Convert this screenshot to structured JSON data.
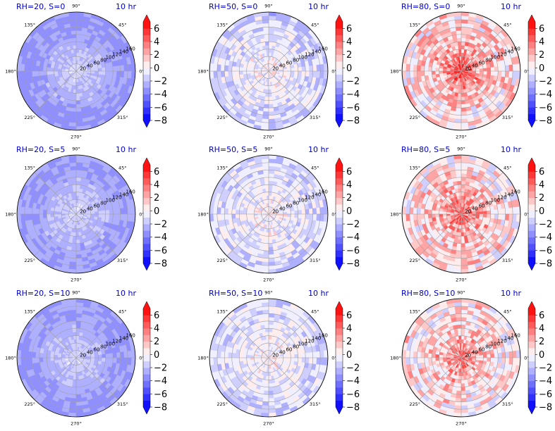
{
  "chart_data": [
    {
      "type": "heatmap",
      "projection": "polar",
      "title_left": "RH=20, S=0",
      "title_right": "10 hr",
      "pattern": "uniform-negative",
      "mean": -3.2,
      "spread": 1.4,
      "center_value": -1.2,
      "angle_ticks": [
        "90°",
        "45°",
        "0°",
        "315°",
        "270°",
        "225°",
        "180°",
        "135°"
      ],
      "radial_ticks": [
        "20",
        "40",
        "60",
        "80",
        "100",
        "120",
        "140",
        "160"
      ],
      "rlim": [
        0,
        160
      ],
      "colorbar": {
        "ticks": [
          "6",
          "4",
          "2",
          "0",
          "−2",
          "−4",
          "−6",
          "−8"
        ],
        "range": [
          -8,
          7
        ],
        "extend": "both",
        "cmap": "bwr"
      }
    },
    {
      "type": "heatmap",
      "projection": "polar",
      "title_left": "RH=50, S=0",
      "title_right": "10 hr",
      "pattern": "mixed-mild",
      "mean": -1.6,
      "spread": 1.5,
      "center_value": 0.2,
      "angle_ticks": [
        "90°",
        "45°",
        "0°",
        "315°",
        "270°",
        "225°",
        "180°",
        "135°"
      ],
      "radial_ticks": [
        "20",
        "40",
        "60",
        "80",
        "100",
        "120",
        "140",
        "160"
      ],
      "rlim": [
        0,
        160
      ],
      "colorbar": {
        "ticks": [
          "6",
          "4",
          "2",
          "0",
          "−2",
          "−4",
          "−6",
          "−8"
        ],
        "range": [
          -8,
          7
        ],
        "extend": "both",
        "cmap": "bwr"
      }
    },
    {
      "type": "heatmap",
      "projection": "polar",
      "title_left": "RH=80, S=0",
      "title_right": "10 hr",
      "pattern": "positive-center",
      "mean": 1.2,
      "spread": 2.5,
      "center_value": 5.5,
      "angle_ticks": [
        "90°",
        "45°",
        "0°",
        "315°",
        "270°",
        "225°",
        "180°",
        "135°"
      ],
      "radial_ticks": [
        "20",
        "40",
        "60",
        "80",
        "100",
        "120",
        "140",
        "160"
      ],
      "rlim": [
        0,
        160
      ],
      "colorbar": {
        "ticks": [
          "6",
          "4",
          "2",
          "0",
          "−2",
          "−4",
          "−6",
          "−8"
        ],
        "range": [
          -8,
          7
        ],
        "extend": "both",
        "cmap": "bwr"
      }
    },
    {
      "type": "heatmap",
      "projection": "polar",
      "title_left": "RH=20, S=5",
      "title_right": "10 hr",
      "pattern": "uniform-negative",
      "mean": -3.0,
      "spread": 1.4,
      "center_value": -1.2,
      "angle_ticks": [
        "90°",
        "45°",
        "0°",
        "315°",
        "270°",
        "225°",
        "180°",
        "135°"
      ],
      "radial_ticks": [
        "20",
        "40",
        "60",
        "80",
        "100",
        "120",
        "140",
        "160"
      ],
      "rlim": [
        0,
        160
      ],
      "colorbar": {
        "ticks": [
          "6",
          "4",
          "2",
          "0",
          "−2",
          "−4",
          "−6",
          "−8"
        ],
        "range": [
          -8,
          7
        ],
        "extend": "both",
        "cmap": "bwr"
      }
    },
    {
      "type": "heatmap",
      "projection": "polar",
      "title_left": "RH=50, S=5",
      "title_right": "10 hr",
      "pattern": "mixed-mild",
      "mean": -1.4,
      "spread": 1.5,
      "center_value": 0.2,
      "angle_ticks": [
        "90°",
        "45°",
        "0°",
        "315°",
        "270°",
        "225°",
        "180°",
        "135°"
      ],
      "radial_ticks": [
        "20",
        "40",
        "60",
        "80",
        "100",
        "120",
        "140",
        "160"
      ],
      "rlim": [
        0,
        160
      ],
      "colorbar": {
        "ticks": [
          "6",
          "4",
          "2",
          "0",
          "−2",
          "−4",
          "−6",
          "−8"
        ],
        "range": [
          -8,
          7
        ],
        "extend": "both",
        "cmap": "bwr"
      }
    },
    {
      "type": "heatmap",
      "projection": "polar",
      "title_left": "RH=80, S=5",
      "title_right": "10 hr",
      "pattern": "positive-center",
      "mean": 1.3,
      "spread": 2.5,
      "center_value": 4.5,
      "angle_ticks": [
        "90°",
        "45°",
        "0°",
        "315°",
        "270°",
        "225°",
        "180°",
        "135°"
      ],
      "radial_ticks": [
        "20",
        "40",
        "60",
        "80",
        "100",
        "120",
        "140",
        "160"
      ],
      "rlim": [
        0,
        160
      ],
      "colorbar": {
        "ticks": [
          "6",
          "4",
          "2",
          "0",
          "−2",
          "−4",
          "−6",
          "−8"
        ],
        "range": [
          -8,
          7
        ],
        "extend": "both",
        "cmap": "bwr"
      }
    },
    {
      "type": "heatmap",
      "projection": "polar",
      "title_left": "RH=20, S=10",
      "title_right": "10 hr",
      "pattern": "uniform-negative",
      "mean": -3.1,
      "spread": 1.4,
      "center_value": -1.2,
      "angle_ticks": [
        "90°",
        "45°",
        "0°",
        "315°",
        "270°",
        "225°",
        "180°",
        "135°"
      ],
      "radial_ticks": [
        "20",
        "40",
        "60",
        "80",
        "100",
        "120",
        "140",
        "160"
      ],
      "rlim": [
        0,
        160
      ],
      "colorbar": {
        "ticks": [
          "6",
          "4",
          "2",
          "0",
          "−2",
          "−4",
          "−6",
          "−8"
        ],
        "range": [
          -8,
          7
        ],
        "extend": "both",
        "cmap": "bwr"
      }
    },
    {
      "type": "heatmap",
      "projection": "polar",
      "title_left": "RH=50, S=10",
      "title_right": "10 hr",
      "pattern": "mixed-mild",
      "mean": -1.3,
      "spread": 1.5,
      "center_value": 0.2,
      "angle_ticks": [
        "90°",
        "45°",
        "0°",
        "315°",
        "270°",
        "225°",
        "180°",
        "135°"
      ],
      "radial_ticks": [
        "20",
        "40",
        "60",
        "80",
        "100",
        "120",
        "140",
        "160"
      ],
      "rlim": [
        0,
        160
      ],
      "colorbar": {
        "ticks": [
          "6",
          "4",
          "2",
          "0",
          "−2",
          "−4",
          "−6",
          "−8"
        ],
        "range": [
          -8,
          7
        ],
        "extend": "both",
        "cmap": "bwr"
      }
    },
    {
      "type": "heatmap",
      "projection": "polar",
      "title_left": "RH=80, S=10",
      "title_right": "10 hr",
      "pattern": "positive-center",
      "mean": 1.1,
      "spread": 2.5,
      "center_value": 4.0,
      "angle_ticks": [
        "90°",
        "45°",
        "0°",
        "315°",
        "270°",
        "225°",
        "180°",
        "135°"
      ],
      "radial_ticks": [
        "20",
        "40",
        "60",
        "80",
        "100",
        "120",
        "140",
        "160"
      ],
      "rlim": [
        0,
        160
      ],
      "colorbar": {
        "ticks": [
          "6",
          "4",
          "2",
          "0",
          "−2",
          "−4",
          "−6",
          "−8"
        ],
        "range": [
          -8,
          7
        ],
        "extend": "both",
        "cmap": "bwr"
      }
    }
  ],
  "colors": {
    "title": "#0000cc",
    "axis": "#000000",
    "grid": "#a0a0a0",
    "cmap_low": "#0000ff",
    "cmap_mid": "#ffffff",
    "cmap_high": "#ff0000"
  }
}
